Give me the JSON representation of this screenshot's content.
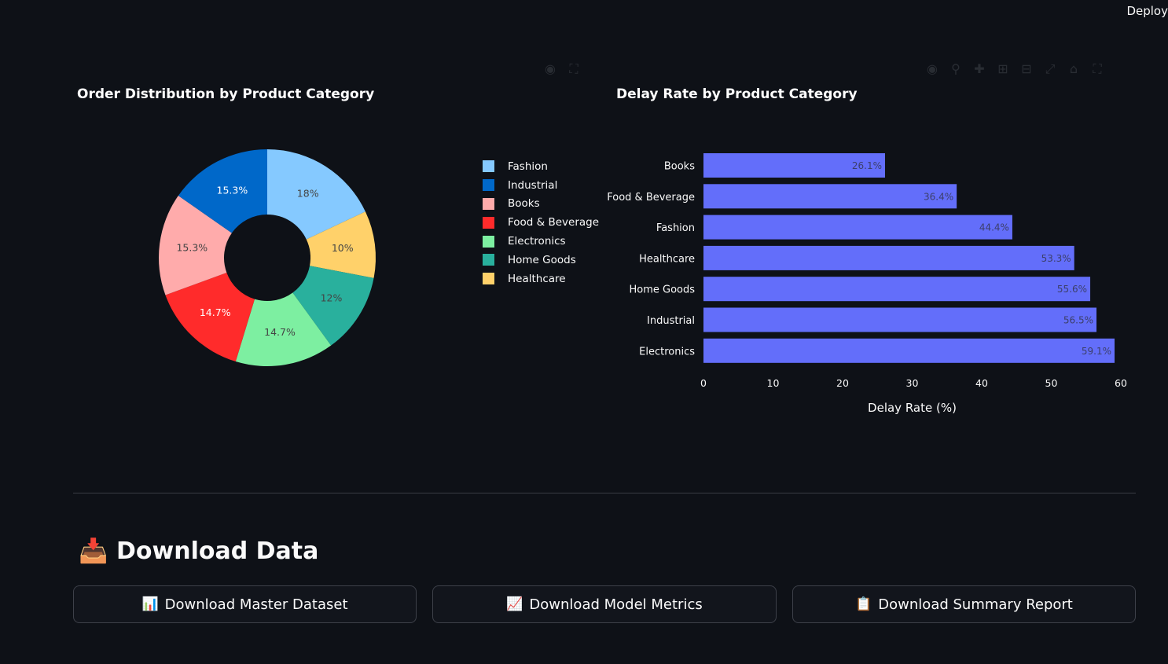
{
  "header": {
    "deploy_label": "Deploy"
  },
  "colors": {
    "background": "#0e1117",
    "bar_fill": "#636efa",
    "pie": {
      "Fashion": "#85c9ff",
      "Industrial": "#0068c9",
      "Books": "#ffabab",
      "Food & Beverage": "#ff2b2b",
      "Electronics": "#7defa1",
      "Home Goods": "#29b09d",
      "Healthcare": "#ffd16a"
    }
  },
  "charts": {
    "pie_title": "Order Distribution by Product Category",
    "bar_title": "Delay Rate by Product Category"
  },
  "chart_data": [
    {
      "type": "pie",
      "title": "Order Distribution by Product Category",
      "hole": true,
      "legend_position": "right",
      "slices": [
        {
          "label": "Fashion",
          "value": 18,
          "text": "18%"
        },
        {
          "label": "Healthcare",
          "value": 10,
          "text": "10%"
        },
        {
          "label": "Home Goods",
          "value": 12,
          "text": "12%"
        },
        {
          "label": "Electronics",
          "value": 14.7,
          "text": "14.7%"
        },
        {
          "label": "Food & Beverage",
          "value": 14.7,
          "text": "14.7%"
        },
        {
          "label": "Books",
          "value": 15.3,
          "text": "15.3%"
        },
        {
          "label": "Industrial",
          "value": 15.3,
          "text": "15.3%"
        }
      ],
      "legend": [
        "Fashion",
        "Industrial",
        "Books",
        "Food & Beverage",
        "Electronics",
        "Home Goods",
        "Healthcare"
      ]
    },
    {
      "type": "bar",
      "orientation": "horizontal",
      "title": "Delay Rate by Product Category",
      "xlabel": "Delay Rate (%)",
      "ylabel": "",
      "xlim": [
        0,
        60
      ],
      "xticks": [
        0,
        10,
        20,
        30,
        40,
        50,
        60
      ],
      "categories": [
        "Books",
        "Food & Beverage",
        "Fashion",
        "Healthcare",
        "Home Goods",
        "Industrial",
        "Electronics"
      ],
      "values": [
        26.1,
        36.4,
        44.4,
        53.3,
        55.6,
        56.5,
        59.1
      ],
      "labels": [
        "26.1%",
        "36.4%",
        "44.4%",
        "53.3%",
        "55.6%",
        "56.5%",
        "59.1%"
      ]
    }
  ],
  "download": {
    "section_icon": "inbox-tray-icon",
    "title": "Download Data",
    "buttons": [
      {
        "icon": "bar-chart-icon",
        "glyph": "📊",
        "label": "Download Master Dataset"
      },
      {
        "icon": "trending-chart-icon",
        "glyph": "📈",
        "label": "Download Model Metrics"
      },
      {
        "icon": "clipboard-icon",
        "glyph": "📋",
        "label": "Download Summary Report"
      }
    ]
  }
}
